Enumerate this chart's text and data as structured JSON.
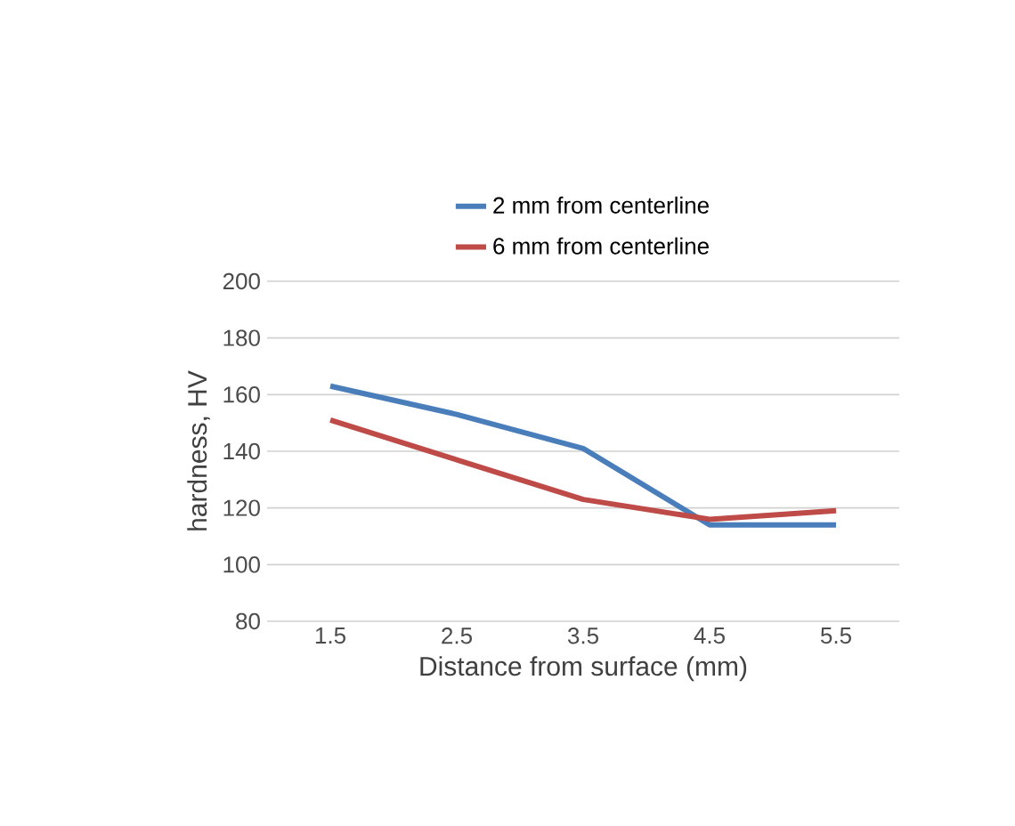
{
  "chart_data": {
    "type": "line",
    "xlabel": "Distance from surface (mm)",
    "ylabel": "hardness, HV",
    "categories": [
      "1.5",
      "2.5",
      "3.5",
      "4.5",
      "5.5"
    ],
    "series": [
      {
        "name": "2 mm from centerline",
        "color": "#4a7ebb",
        "values": [
          163,
          153,
          141,
          114,
          114
        ]
      },
      {
        "name": "6 mm from centerline",
        "color": "#be4b48",
        "values": [
          151,
          137,
          123,
          116,
          119
        ]
      }
    ],
    "ylim": [
      80,
      200
    ],
    "yticks": [
      80,
      100,
      120,
      140,
      160,
      180,
      200
    ],
    "grid": "y",
    "legend": "top",
    "marker": "none",
    "line_style": "solid"
  }
}
